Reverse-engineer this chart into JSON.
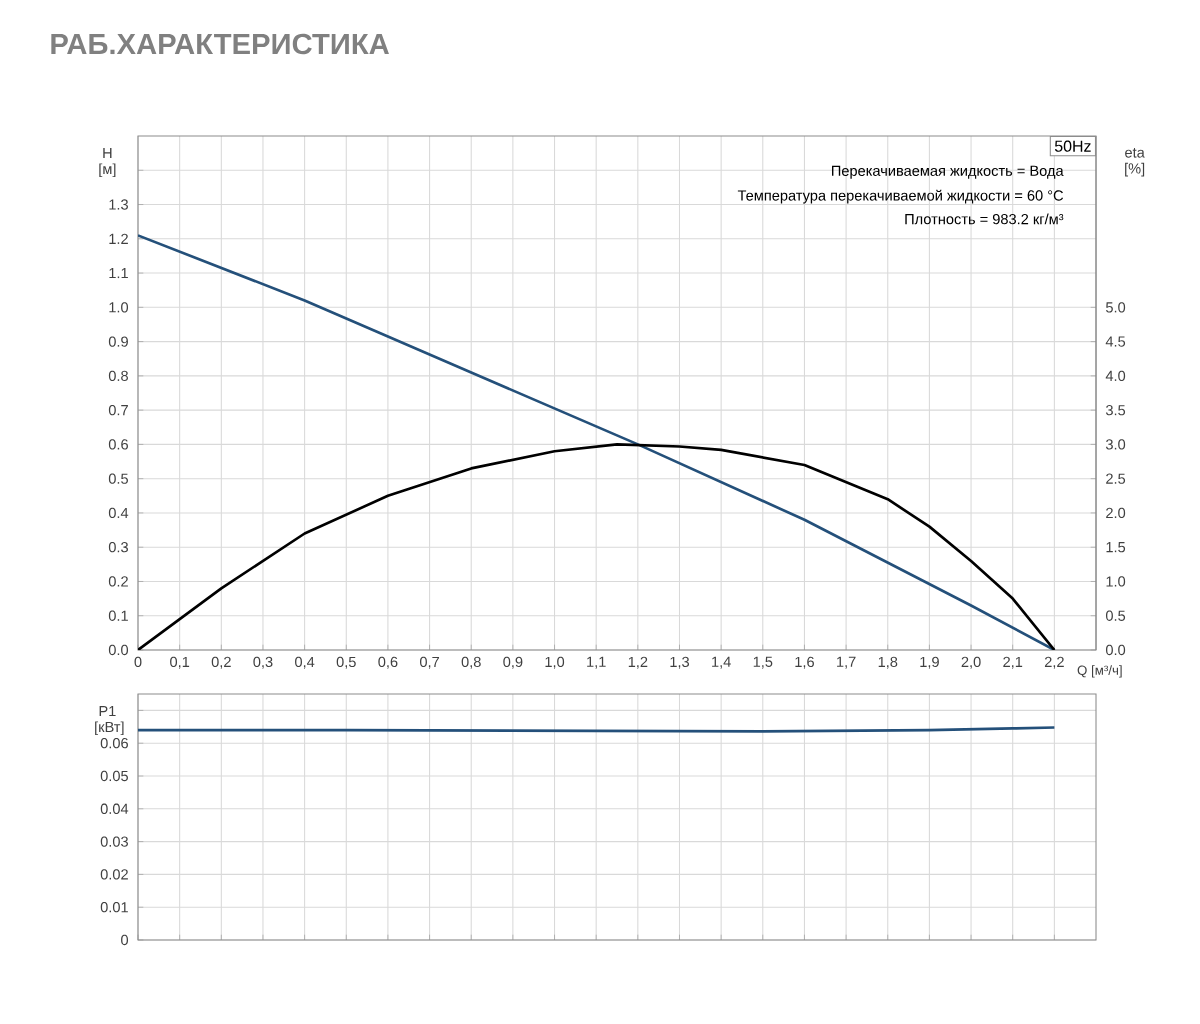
{
  "chart_data": [
    {
      "type": "line",
      "title": "РАБ.ХАРАКТЕРИСТИКА",
      "xlabel": "Q [м³/ч]",
      "ylabel": "H [м]",
      "y2label": "eta [%]",
      "annotations": [
        "50Hz",
        "Перекачиваемая жидкость = Вода",
        "Температура перекачиваемой жидкости = 60 °C",
        "Плотность = 983.2 кг/м³"
      ],
      "xlim": [
        0,
        2.3
      ],
      "ylim": [
        0,
        1.5
      ],
      "y2lim": [
        0,
        7.5
      ],
      "xticks": [
        0,
        {
          "value": 0.1,
          "label": "0,1"
        },
        {
          "value": 0.2,
          "label": "0,2"
        },
        {
          "value": 0.3,
          "label": "0,3"
        },
        {
          "value": 0.4,
          "label": "0,4"
        },
        {
          "value": 0.5,
          "label": "0,5"
        },
        {
          "value": 0.6,
          "label": "0,6"
        },
        {
          "value": 0.7,
          "label": "0,7"
        },
        {
          "value": 0.8,
          "label": "0,8"
        },
        {
          "value": 0.9,
          "label": "0,9"
        },
        {
          "value": 1.0,
          "label": "1,0"
        },
        {
          "value": 1.1,
          "label": "1,1"
        },
        {
          "value": 1.2,
          "label": "1,2"
        },
        {
          "value": 1.3,
          "label": "1,3"
        },
        {
          "value": 1.4,
          "label": "1,4"
        },
        {
          "value": 1.5,
          "label": "1,5"
        },
        {
          "value": 1.6,
          "label": "1,6"
        },
        {
          "value": 1.7,
          "label": "1,7"
        },
        {
          "value": 1.8,
          "label": "1,8"
        },
        {
          "value": 1.9,
          "label": "1,9"
        },
        {
          "value": 2.0,
          "label": "2,0"
        },
        {
          "value": 2.1,
          "label": "2,1"
        },
        {
          "value": 2.2,
          "label": "2,2"
        }
      ],
      "yticks": [
        {
          "value": 0,
          "label": "0.0"
        },
        0.1,
        0.2,
        0.3,
        0.4,
        0.5,
        0.6,
        0.7,
        0.8,
        0.9,
        {
          "value": 1.0,
          "label": "1.0"
        },
        1.1,
        1.2,
        1.3,
        {
          "value": 1.4,
          "label": null
        }
      ],
      "y2ticks": [
        {
          "value": 0,
          "label": "0.0"
        },
        0.5,
        {
          "value": 1.0,
          "label": "1.0"
        },
        1.5,
        {
          "value": 2.0,
          "label": "2.0"
        },
        2.5,
        {
          "value": 3.0,
          "label": "3.0"
        },
        3.5,
        {
          "value": 4.0,
          "label": "4.0"
        },
        4.5,
        {
          "value": 5.0,
          "label": "5.0"
        }
      ],
      "grid": true,
      "marker": "none",
      "series": [
        {
          "color": "#24507a",
          "x": [
            0,
            0.4,
            0.8,
            1.2,
            1.6,
            2.0,
            2.2
          ],
          "values": [
            1.21,
            1.02,
            0.81,
            0.6,
            0.38,
            0.13,
            0
          ]
        },
        {
          "color": "#000000",
          "axis": "y2",
          "x": [
            0,
            0.2,
            0.4,
            0.6,
            0.8,
            1.0,
            1.15,
            1.3,
            1.4,
            1.6,
            1.8,
            1.9,
            2.0,
            2.1,
            2.2
          ],
          "values": [
            0,
            0.9,
            1.7,
            2.25,
            2.65,
            2.9,
            3.0,
            2.97,
            2.92,
            2.7,
            2.2,
            1.8,
            1.3,
            0.75,
            0
          ]
        }
      ]
    },
    {
      "type": "line",
      "ylabel": "P1 [кВт]",
      "xlim": [
        0,
        2.3
      ],
      "ylim": [
        0,
        0.075
      ],
      "tick_labels": "y",
      "xticks": [
        0,
        0.1,
        0.2,
        0.3,
        0.4,
        0.5,
        0.6,
        0.7,
        0.8,
        0.9,
        1.0,
        1.1,
        1.2,
        1.3,
        1.4,
        1.5,
        1.6,
        1.7,
        1.8,
        1.9,
        2.0,
        2.1,
        2.2
      ],
      "yticks": [
        0,
        0.01,
        0.02,
        0.03,
        0.04,
        0.05,
        0.06,
        {
          "value": 0.07,
          "label": null
        }
      ],
      "grid": true,
      "marker": "none",
      "series": [
        {
          "color": "#24507a",
          "x": [
            0,
            0.5,
            1.0,
            1.5,
            1.9,
            2.1,
            2.2
          ],
          "values": [
            0.064,
            0.064,
            0.0638,
            0.0636,
            0.064,
            0.0645,
            0.0648
          ]
        }
      ]
    }
  ]
}
